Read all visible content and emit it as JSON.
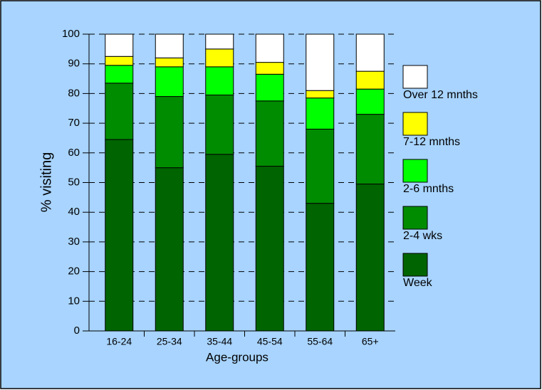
{
  "chart_data": {
    "type": "stacked_bar",
    "x_label": "Age-groups",
    "y_label": "% visiting",
    "categories": [
      "16-24",
      "25-34",
      "35-44",
      "45-54",
      "55-64",
      "65+"
    ],
    "series": [
      {
        "name": "Week",
        "color": "#006400",
        "values": [
          64.5,
          55,
          59.5,
          55.5,
          43,
          49.5
        ]
      },
      {
        "name": "2-4 wks",
        "color": "#008c00",
        "values": [
          19,
          24,
          20,
          22,
          25,
          23.5
        ]
      },
      {
        "name": "2-6 mnths",
        "color": "#00ff00",
        "values": [
          6,
          10,
          9.5,
          9,
          10.5,
          8.5
        ]
      },
      {
        "name": "7-12 mnths",
        "color": "#ffff00",
        "values": [
          3,
          3,
          6,
          4,
          2.5,
          6
        ]
      },
      {
        "name": "Over 12 mnths",
        "color": "#ffffff",
        "values": [
          7.5,
          8,
          5,
          9.5,
          19,
          12.5
        ]
      }
    ],
    "ylim": [
      0,
      100
    ],
    "yticks": [
      0,
      10,
      20,
      30,
      40,
      50,
      60,
      70,
      80,
      90,
      100
    ],
    "grid": true,
    "legend": "right"
  }
}
